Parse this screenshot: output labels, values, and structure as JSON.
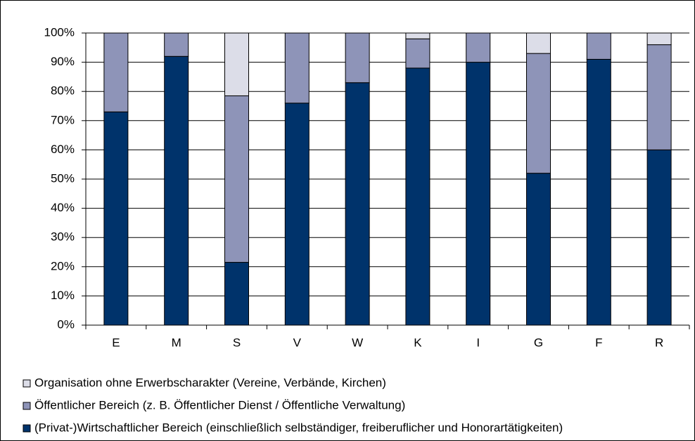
{
  "chart_data": {
    "type": "stacked_bar",
    "categories": [
      "E",
      "M",
      "S",
      "V",
      "W",
      "K",
      "I",
      "G",
      "F",
      "R"
    ],
    "series": [
      {
        "name": "(Privat-)Wirtschaftlicher Bereich (einschließlich selbständiger, freiberuflicher und Honorartätigkeiten)",
        "color": "#00336b",
        "values": [
          73,
          92,
          21.5,
          76,
          83,
          88,
          90,
          52,
          91,
          60
        ]
      },
      {
        "name": "Öffentlicher Bereich (z. B. Öffentlicher Dienst / Öffentliche Verwaltung)",
        "color": "#8e94b8",
        "values": [
          27,
          8,
          57,
          24,
          17,
          10,
          10,
          41,
          9,
          36
        ]
      },
      {
        "name": "Organisation ohne Erwerbscharakter (Vereine, Verbände, Kirchen)",
        "color": "#dcdde8",
        "values": [
          0,
          0,
          21.5,
          0,
          0,
          2,
          0,
          7,
          0,
          4
        ]
      }
    ],
    "ylim": [
      0,
      100
    ],
    "yticks": [
      {
        "value": 0,
        "label": "0%"
      },
      {
        "value": 10,
        "label": "10%"
      },
      {
        "value": 20,
        "label": "20%"
      },
      {
        "value": 30,
        "label": "30%"
      },
      {
        "value": 40,
        "label": "40%"
      },
      {
        "value": 50,
        "label": "50%"
      },
      {
        "value": 60,
        "label": "60%"
      },
      {
        "value": 70,
        "label": "70%"
      },
      {
        "value": 80,
        "label": "80%"
      },
      {
        "value": 90,
        "label": "90%"
      },
      {
        "value": 100,
        "label": "100%"
      }
    ],
    "grid": true
  }
}
